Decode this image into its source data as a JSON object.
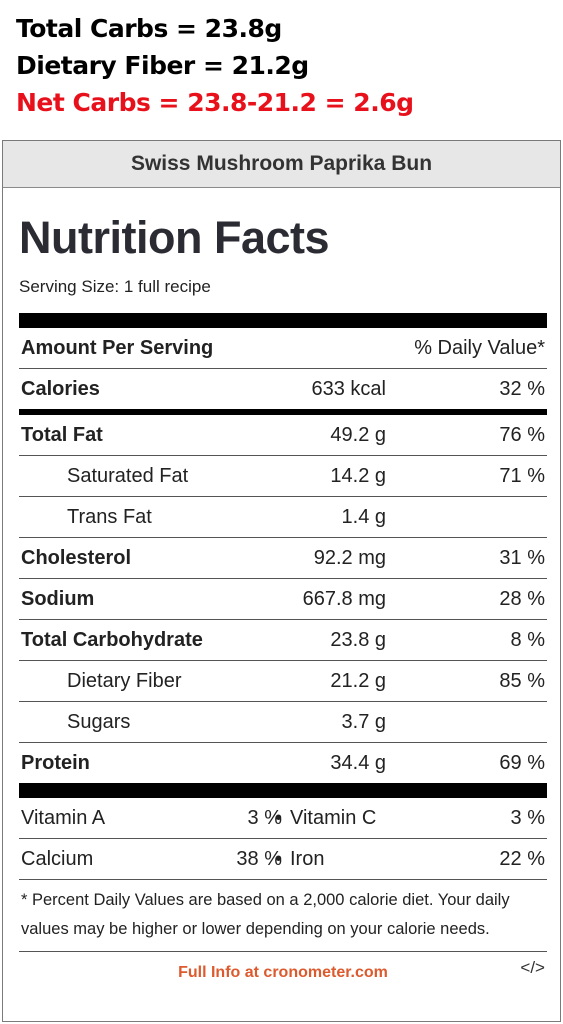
{
  "notes": {
    "total_carbs": "Total Carbs = 23.8g",
    "dietary_fiber": "Dietary Fiber = 21.2g",
    "net_carbs": "Net Carbs = 23.8-21.2 = 2.6g",
    "net_carbs_color": "#e8101a"
  },
  "label": {
    "recipe_name": "Swiss Mushroom Paprika Bun",
    "title": "Nutrition Facts",
    "serving_size": "Serving Size: 1 full recipe",
    "amount_per_serving": "Amount Per Serving",
    "daily_value_header": "% Daily Value*",
    "rows": [
      {
        "label": "Calories",
        "amount": "633 kcal",
        "dv": "32 %"
      },
      {
        "label": "Total Fat",
        "amount": "49.2 g",
        "dv": "76 %"
      },
      {
        "label": "Saturated Fat",
        "amount": "14.2 g",
        "dv": "71 %"
      },
      {
        "label": "Trans Fat",
        "amount": "1.4 g",
        "dv": ""
      },
      {
        "label": "Cholesterol",
        "amount": "92.2 mg",
        "dv": "31 %"
      },
      {
        "label": "Sodium",
        "amount": "667.8 mg",
        "dv": "28 %"
      },
      {
        "label": "Total Carbohydrate",
        "amount": "23.8 g",
        "dv": "8 %"
      },
      {
        "label": "Dietary Fiber",
        "amount": "21.2 g",
        "dv": "85 %"
      },
      {
        "label": "Sugars",
        "amount": "3.7 g",
        "dv": ""
      },
      {
        "label": "Protein",
        "amount": "34.4 g",
        "dv": "69 %"
      }
    ],
    "vitamins": [
      {
        "left_label": "Vitamin A",
        "left_dv": "3 %",
        "right_label": "Vitamin C",
        "right_dv": "3 %"
      },
      {
        "left_label": "Calcium",
        "left_dv": "38 %",
        "right_label": "Iron",
        "right_dv": "22 %"
      }
    ],
    "bullet": "•",
    "footnote": "* Percent Daily Values are based on a 2,000 calorie diet. Your daily values may be higher or lower depending on your calorie needs.",
    "footer_link": "Full Info at cronometer.com",
    "footer_link_color": "#dd5a2e",
    "embed_icon": "</>"
  }
}
